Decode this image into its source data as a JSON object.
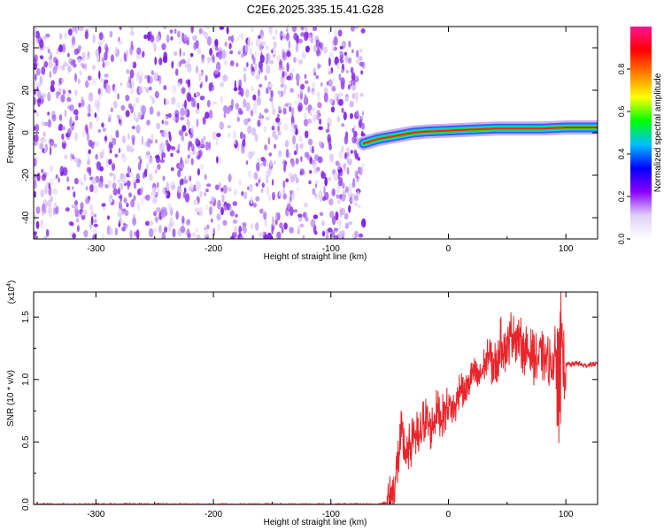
{
  "title": "C2E6.2025.335.15.41.G28",
  "chart_data": [
    {
      "type": "heatmap",
      "xlabel": "Height of straight line (km)",
      "ylabel": "Frequency (Hz)",
      "xlim": [
        -353,
        127
      ],
      "ylim": [
        -50,
        50
      ],
      "xticks": [
        -300,
        -200,
        -100,
        0,
        100
      ],
      "yticks": [
        -40,
        -20,
        0,
        20,
        40
      ],
      "noise_region_x": [
        -353,
        -72
      ],
      "signal_trace": {
        "x": [
          -72,
          -60,
          -50,
          -40,
          -30,
          -20,
          -10,
          0,
          20,
          40,
          60,
          80,
          100,
          127
        ],
        "frequency": [
          -5,
          -3,
          -2,
          -1,
          0,
          0.5,
          0.8,
          1,
          1.5,
          2,
          2,
          2,
          2.5,
          2.5
        ]
      },
      "colorbar": {
        "label": "Normalized spectral amplitude",
        "range": [
          0,
          1
        ],
        "ticks": [
          0.0,
          0.2,
          0.4,
          0.6,
          0.8
        ],
        "colors": [
          "#ffffff",
          "#e0d0f6",
          "#8b00ff",
          "#0000ff",
          "#00bfff",
          "#00ff00",
          "#ffff00",
          "#ff7f00",
          "#ff0000",
          "#ff1493"
        ]
      }
    },
    {
      "type": "line",
      "xlabel": "Height of straight line (km)",
      "ylabel": "SNR (10 * v/v)",
      "exponent_label": "(x10",
      "exponent_power": "4",
      "exponent_close": ")",
      "xlim": [
        -353,
        127
      ],
      "ylim": [
        0.0,
        1.7
      ],
      "xticks": [
        -300,
        -200,
        -100,
        0,
        100
      ],
      "yticks": [
        0.0,
        0.5,
        1.0,
        1.5
      ],
      "line_color": "#e8252b",
      "series": [
        {
          "x": [
            -353,
            -300,
            -250,
            -200,
            -150,
            -100,
            -60,
            -50,
            -45,
            -40,
            -35,
            -30,
            -25,
            -20,
            -15,
            -10,
            -5,
            0,
            5,
            10,
            15,
            20,
            25,
            30,
            35,
            40,
            45,
            50,
            55,
            60,
            65,
            70,
            75,
            80,
            85,
            90,
            93,
            95,
            97,
            100,
            105,
            110,
            115,
            120,
            127
          ],
          "y": [
            0.0,
            0.0,
            0.0,
            0.0,
            0.0,
            0.0,
            0.0,
            0.02,
            0.2,
            0.55,
            0.35,
            0.6,
            0.5,
            0.7,
            0.6,
            0.75,
            0.7,
            0.8,
            0.75,
            0.95,
            0.9,
            1.05,
            1.0,
            1.1,
            1.2,
            1.1,
            1.3,
            1.25,
            1.4,
            1.3,
            1.25,
            1.2,
            1.15,
            1.2,
            1.15,
            1.1,
            1.3,
            1.62,
            1.15,
            1.12,
            1.12,
            1.13,
            1.11,
            1.12,
            1.12
          ]
        }
      ]
    }
  ]
}
